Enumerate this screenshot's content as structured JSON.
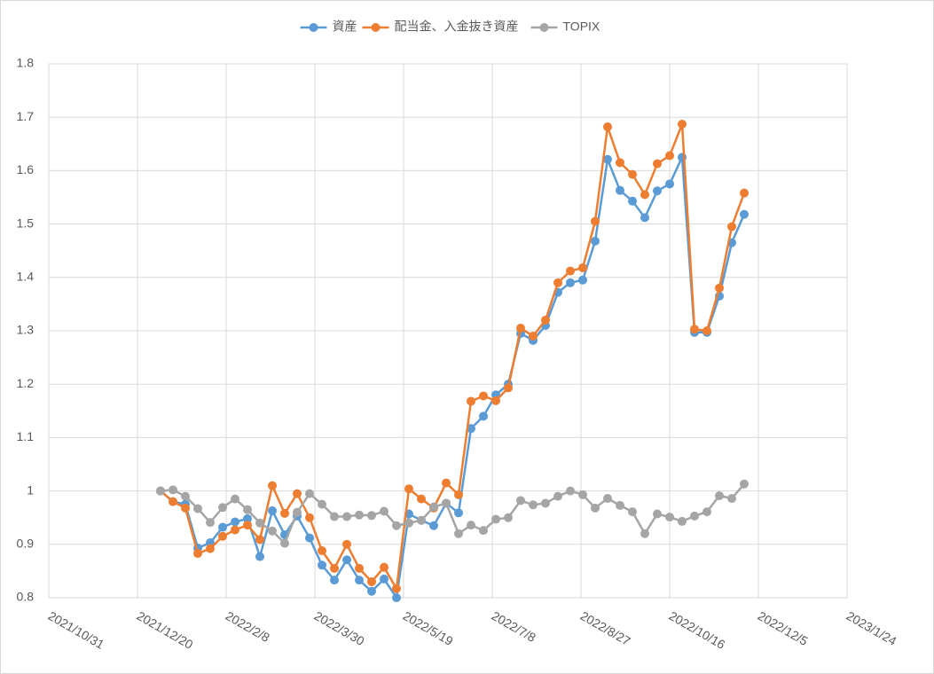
{
  "chart_data": {
    "type": "line",
    "x": [
      "2022/1/2",
      "2022/1/9",
      "2022/1/16",
      "2022/1/23",
      "2022/1/30",
      "2022/2/6",
      "2022/2/13",
      "2022/2/20",
      "2022/2/27",
      "2022/3/6",
      "2022/3/13",
      "2022/3/20",
      "2022/3/27",
      "2022/4/3",
      "2022/4/10",
      "2022/4/17",
      "2022/4/24",
      "2022/5/1",
      "2022/5/8",
      "2022/5/15",
      "2022/5/22",
      "2022/5/29",
      "2022/6/5",
      "2022/6/12",
      "2022/6/19",
      "2022/6/26",
      "2022/7/3",
      "2022/7/10",
      "2022/7/17",
      "2022/7/24",
      "2022/7/31",
      "2022/8/7",
      "2022/8/14",
      "2022/8/21",
      "2022/8/28",
      "2022/9/4",
      "2022/9/11",
      "2022/9/18",
      "2022/9/25",
      "2022/10/2",
      "2022/10/9",
      "2022/10/16",
      "2022/10/23",
      "2022/10/30",
      "2022/11/6",
      "2022/11/13",
      "2022/11/20",
      "2022/11/27"
    ],
    "series": [
      {
        "name": "資産",
        "color": "#5b9bd5",
        "values": [
          1.0,
          0.98,
          0.975,
          0.893,
          0.903,
          0.932,
          0.942,
          0.948,
          0.877,
          0.963,
          0.918,
          0.953,
          0.912,
          0.861,
          0.833,
          0.871,
          0.833,
          0.812,
          0.835,
          0.8,
          0.957,
          0.945,
          0.935,
          0.977,
          0.959,
          1.117,
          1.14,
          1.18,
          1.2,
          1.295,
          1.282,
          1.31,
          1.372,
          1.39,
          1.395,
          1.468,
          1.621,
          1.563,
          1.543,
          1.512,
          1.562,
          1.575,
          1.625,
          1.297,
          1.297,
          1.365,
          1.465,
          1.518
        ]
      },
      {
        "name": "配当金、入金抜き資産",
        "color": "#ed7d31",
        "values": [
          1.0,
          0.98,
          0.968,
          0.883,
          0.892,
          0.915,
          0.927,
          0.936,
          0.909,
          1.01,
          0.958,
          0.995,
          0.95,
          0.888,
          0.855,
          0.9,
          0.855,
          0.83,
          0.857,
          0.817,
          1.004,
          0.985,
          0.968,
          1.015,
          0.993,
          1.168,
          1.178,
          1.169,
          1.193,
          1.305,
          1.29,
          1.32,
          1.39,
          1.412,
          1.418,
          1.505,
          1.682,
          1.615,
          1.593,
          1.555,
          1.613,
          1.628,
          1.687,
          1.303,
          1.3,
          1.38,
          1.495,
          1.558
        ]
      },
      {
        "name": "TOPIX",
        "color": "#a5a5a5",
        "values": [
          1.0,
          1.002,
          0.99,
          0.967,
          0.941,
          0.969,
          0.985,
          0.965,
          0.94,
          0.925,
          0.902,
          0.96,
          0.995,
          0.975,
          0.952,
          0.952,
          0.955,
          0.954,
          0.962,
          0.935,
          0.94,
          0.945,
          0.97,
          0.977,
          0.92,
          0.936,
          0.926,
          0.947,
          0.95,
          0.982,
          0.974,
          0.977,
          0.99,
          1.0,
          0.993,
          0.968,
          0.986,
          0.973,
          0.961,
          0.92,
          0.957,
          0.951,
          0.943,
          0.953,
          0.961,
          0.991,
          0.986,
          1.013
        ]
      }
    ],
    "xlim": [
      "2021/10/31",
      "2023/1/24"
    ],
    "xticks": [
      "2021/10/31",
      "2021/12/20",
      "2022/2/8",
      "2022/3/30",
      "2022/5/19",
      "2022/7/8",
      "2022/8/27",
      "2022/10/16",
      "2022/12/5",
      "2023/1/24"
    ],
    "ylim": [
      0.8,
      1.8
    ],
    "yticks": [
      0.8,
      0.9,
      1,
      1.1,
      1.2,
      1.3,
      1.4,
      1.5,
      1.6,
      1.7,
      1.8
    ],
    "grid": true,
    "legend": "top"
  }
}
